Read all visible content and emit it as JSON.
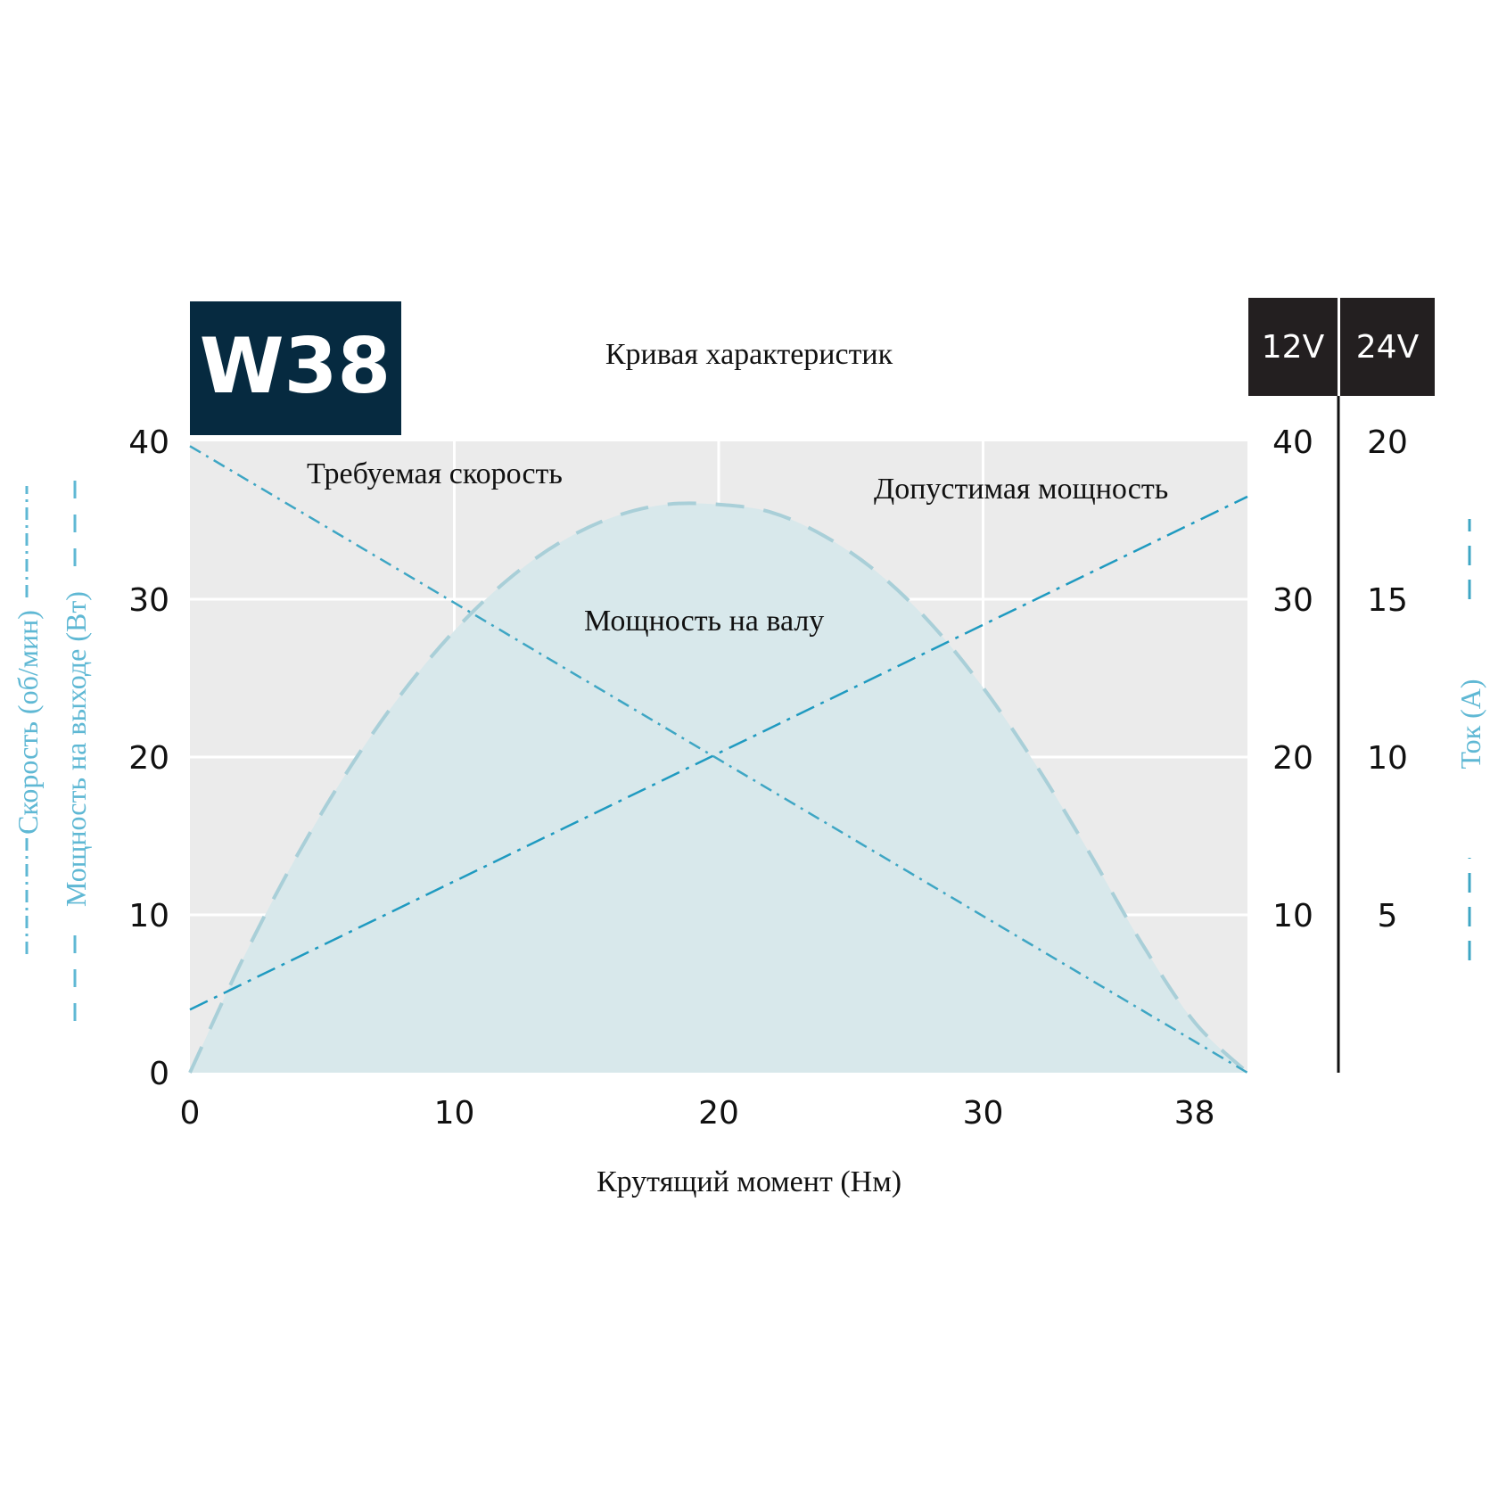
{
  "badge": {
    "label": "W38",
    "color": "#062a40"
  },
  "chart_data": {
    "type": "line",
    "title": "Кривая характеристик",
    "xlabel": "Крутящий момент (Нм)",
    "ylabel_left_speed": "Скорость (об/мин)",
    "ylabel_left_power": "Мощность на выходе (Вт)",
    "ylabel_right": "Ток (A)",
    "voltage_headers": [
      "12V",
      "24V"
    ],
    "x_ticks": [
      0,
      10,
      20,
      30,
      38
    ],
    "xlim": [
      0,
      40
    ],
    "y_ticks": [
      0,
      10,
      20,
      30,
      40
    ],
    "ylim": [
      0,
      40
    ],
    "right_ticks_12v": [
      {
        "label": "40",
        "y": 40
      },
      {
        "label": "30",
        "y": 30
      },
      {
        "label": "20",
        "y": 20
      },
      {
        "label": "10",
        "y": 10
      }
    ],
    "right_ticks_24v": [
      {
        "label": "20",
        "y": 40
      },
      {
        "label": "15",
        "y": 30
      },
      {
        "label": "10",
        "y": 20
      },
      {
        "label": "5",
        "y": 10
      }
    ],
    "grid": true,
    "series": [
      {
        "name": "Требуемая скорость",
        "style": "dash-dot",
        "x": [
          0,
          40
        ],
        "y": [
          39.7,
          0
        ]
      },
      {
        "name": "Допустимая мощность",
        "style": "dash-dot",
        "x": [
          0,
          40
        ],
        "y": [
          4,
          36.5
        ]
      },
      {
        "name": "Мощность на валу",
        "style": "dashed-filled",
        "x": [
          0,
          2,
          4,
          6,
          8,
          10,
          12,
          14,
          16,
          18,
          20,
          22,
          24,
          26,
          28,
          30,
          32,
          34,
          36,
          38,
          40
        ],
        "y": [
          0,
          7.2,
          13.6,
          19.2,
          24.0,
          28.0,
          31.2,
          33.6,
          35.2,
          36.0,
          36.0,
          35.5,
          34.0,
          31.7,
          28.5,
          24.4,
          19.5,
          14.0,
          8.2,
          3.2,
          0
        ]
      }
    ],
    "colors": {
      "plot_bg": "#ebebeb",
      "fill": "#d8e8eb",
      "curve_dash": "#a9cfd8",
      "speed_line": "#3ea6c4",
      "power_line": "#1f9ac0",
      "axis_label": "#5fb8d4",
      "header_bg": "#231f20"
    }
  }
}
